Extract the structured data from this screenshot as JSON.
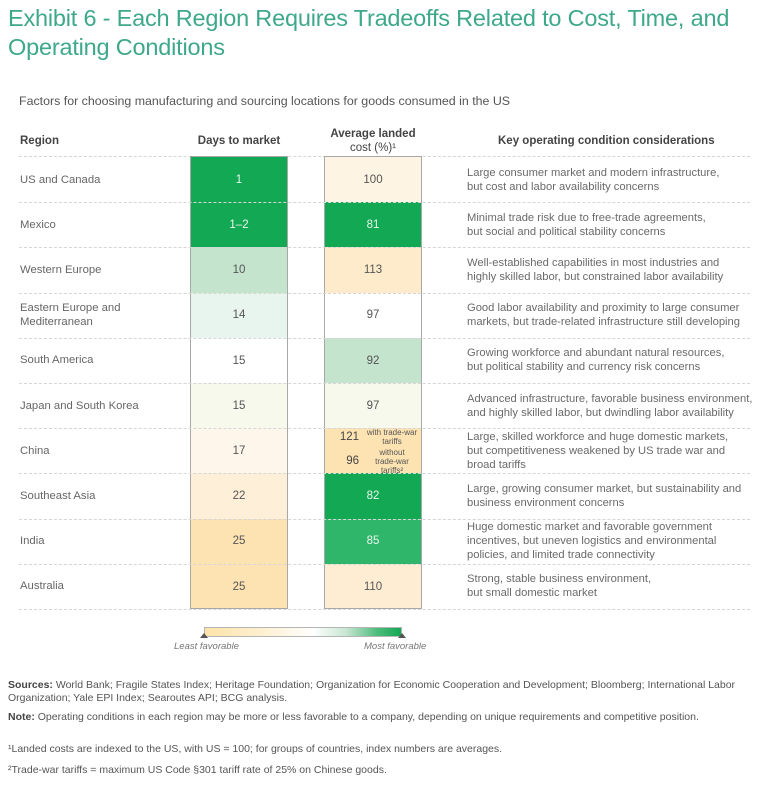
{
  "title": "Exhibit 6 - Each Region Requires Tradeoffs Related to Cost, Time, and Operating Conditions",
  "subtitle": "Factors for choosing manufacturing and sourcing locations for goods consumed in the US",
  "headers": {
    "region": "Region",
    "days": "Days to market",
    "cost_line1": "Average landed",
    "cost_line2": "cost (%)¹",
    "considerations": "Key operating condition considerations"
  },
  "colors": {
    "title": "#3ea88b",
    "most_favorable": "#13a853",
    "least_favorable": "#fde3a8",
    "neutral": "#ffffff"
  },
  "chart_data": {
    "type": "table",
    "title": "Exhibit 6 - Each Region Requires Tradeoffs Related to Cost, Time, and Operating Conditions",
    "columns": [
      "Region",
      "Days to market",
      "Average landed cost (%)",
      "Key operating condition considerations"
    ],
    "rows": [
      {
        "region": "US and Canada",
        "days": "1",
        "days_color": "#13a853",
        "days_text": "light",
        "cost": "100",
        "cost_color": "#fef4e4",
        "cost_text": "dark",
        "considerations": [
          "Large consumer market and modern infrastructure,",
          "but cost and labor availability concerns"
        ]
      },
      {
        "region": "Mexico",
        "days": "1–2",
        "days_color": "#13a853",
        "days_text": "light",
        "cost": "81",
        "cost_color": "#13a853",
        "cost_text": "light",
        "considerations": [
          "Minimal trade risk due to free-trade agreements,",
          "but social and political stability concerns"
        ]
      },
      {
        "region": "Western Europe",
        "days": "10",
        "days_color": "#c4e4cd",
        "days_text": "dark",
        "cost": "113",
        "cost_color": "#fdebcb",
        "cost_text": "dark",
        "considerations": [
          "Well-established capabilities in most industries and",
          "highly skilled labor, but constrained labor availability"
        ]
      },
      {
        "region": "Eastern Europe and Mediterranean",
        "region_lines": [
          "Eastern Europe and",
          "Mediterranean"
        ],
        "days": "14",
        "days_color": "#e8f5ee",
        "days_text": "dark",
        "cost": "97",
        "cost_color": "#ffffff",
        "cost_text": "dark",
        "considerations": [
          "Good labor availability and proximity to large consumer",
          "markets, but trade-related infrastructure still developing"
        ]
      },
      {
        "region": "South America",
        "days": "15",
        "days_color": "#ffffff",
        "days_text": "dark",
        "cost": "92",
        "cost_color": "#c4e4cd",
        "cost_text": "dark",
        "considerations": [
          "Growing workforce and abundant natural resources,",
          "but political stability and currency risk concerns"
        ]
      },
      {
        "region": "Japan and South Korea",
        "days": "15",
        "days_color": "#f6f9ec",
        "days_text": "dark",
        "cost": "97",
        "cost_color": "#f6f9ec",
        "cost_text": "dark",
        "considerations": [
          "Advanced infrastructure, favorable business environment,",
          "and highly skilled labor, but dwindling labor availability"
        ]
      },
      {
        "region": "China",
        "days": "17",
        "days_color": "#fef6ea",
        "days_text": "dark",
        "cost_split": [
          {
            "value": "121",
            "label_lines": [
              "with trade-war",
              "tariffs"
            ]
          },
          {
            "value": "96",
            "label_lines": [
              "without",
              "trade-war tariffs²"
            ]
          }
        ],
        "cost_color": "#fde3b2",
        "cost_text": "dark",
        "considerations": [
          "Large, skilled workforce and huge domestic markets,",
          "but competitiveness weakened by US trade war and",
          "broad tariffs"
        ]
      },
      {
        "region": "Southeast Asia",
        "days": "22",
        "days_color": "#feefd8",
        "days_text": "dark",
        "cost": "82",
        "cost_color": "#13a853",
        "cost_text": "light",
        "considerations": [
          "Large, growing consumer market, but sustainability and",
          "business environment concerns"
        ]
      },
      {
        "region": "India",
        "days": "25",
        "days_color": "#fde3b2",
        "days_text": "dark",
        "cost": "85",
        "cost_color": "#2fb66a",
        "cost_text": "light",
        "considerations": [
          "Huge domestic market and favorable government",
          "incentives, but uneven logistics and environmental",
          "policies, and limited trade connectivity"
        ]
      },
      {
        "region": "Australia",
        "days": "25",
        "days_color": "#fde3b2",
        "days_text": "dark",
        "cost": "110",
        "cost_color": "#feedd2",
        "cost_text": "dark",
        "considerations": [
          "Strong, stable business environment,",
          "but small domestic market"
        ]
      }
    ],
    "legend": {
      "low_label": "Least favorable",
      "high_label": "Most favorable"
    }
  },
  "footnotes": {
    "sources_label": "Sources:",
    "sources_text": " World Bank; Fragile States Index; Heritage Foundation; Organization for Economic Cooperation and Development; Bloomberg; International Labor Organization; Yale EPI Index; Searoutes API; BCG analysis.",
    "note_label": "Note:",
    "note_text": " Operating conditions in each region may be more or less favorable to a company, depending on unique requirements and competitive position.",
    "fn1": "¹Landed costs are indexed to the US, with US = 100; for groups of countries, index numbers are averages.",
    "fn2": "²Trade-war tariffs = maximum US Code §301 tariff rate of 25% on Chinese goods."
  }
}
